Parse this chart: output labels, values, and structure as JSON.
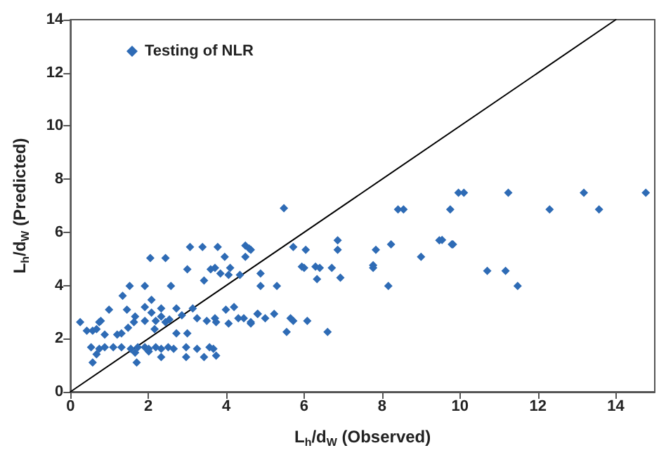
{
  "chart_data": {
    "type": "scatter",
    "xlabel": "L$_{h}$/d$_{W}$ (Observed)",
    "ylabel": "L$_{h}$/d$_{W}$ (Predicted)",
    "xlim": [
      0,
      15
    ],
    "xticks": [
      0,
      2,
      4,
      6,
      8,
      10,
      12,
      14
    ],
    "ylim": [
      0,
      14
    ],
    "yticks": [
      0,
      2,
      4,
      6,
      8,
      10,
      12,
      14
    ],
    "grid": false,
    "legend": "top left",
    "marker": "diamond",
    "series": [
      {
        "name": "Testing of NLR",
        "color": "#2e6bb5",
        "x": [
          6.86,
          6.86,
          6.04,
          5.72,
          5.94,
          6.0,
          6.29,
          6.4,
          6.71,
          6.33,
          6.93,
          4.88,
          4.88,
          5.3,
          4.63,
          7.84,
          7.77,
          7.77,
          8.23,
          8.16,
          9.0,
          9.47,
          9.79,
          4.63,
          4.8,
          5.0,
          5.23,
          5.65,
          5.72,
          6.08,
          5.55,
          6.6,
          9.96,
          10.1,
          11.24,
          13.18,
          14.77,
          9.75,
          12.3,
          13.57,
          9.54,
          9.82,
          10.7,
          11.17,
          11.48,
          8.41,
          8.55,
          5.48,
          3.07,
          3.39,
          3.78,
          4.49,
          4.59,
          2.05,
          2.44,
          3.96,
          4.49,
          3.0,
          3.6,
          3.71,
          4.1,
          3.85,
          3.43,
          4.06,
          4.35,
          1.52,
          1.91,
          2.58,
          1.34,
          2.08,
          1.91,
          2.33,
          2.72,
          3.14,
          1.45,
          0.99,
          2.08,
          4.2,
          3.99,
          4.81,
          0.25,
          0.78,
          0.74,
          1.66,
          1.63,
          1.91,
          2.19,
          2.33,
          2.54,
          2.44,
          2.86,
          3.25,
          3.5,
          3.71,
          3.74,
          4.06,
          4.31,
          4.45,
          4.63,
          0.42,
          0.57,
          0.67,
          0.88,
          1.2,
          1.31,
          1.48,
          2.16,
          2.72,
          3.0,
          0.53,
          0.74,
          0.88,
          1.1,
          1.31,
          1.55,
          1.73,
          1.91,
          2.01,
          2.19,
          2.33,
          2.51,
          2.65,
          2.97,
          3.25,
          3.57,
          3.67,
          0.67,
          1.66,
          2.01,
          2.33,
          2.97,
          3.43,
          3.74,
          0.57,
          1.7
        ],
        "values": [
          5.7,
          5.34,
          5.34,
          5.45,
          4.71,
          4.66,
          4.71,
          4.66,
          4.66,
          4.24,
          4.29,
          4.45,
          3.98,
          3.98,
          5.34,
          5.34,
          4.76,
          4.66,
          5.55,
          3.98,
          5.08,
          5.7,
          5.55,
          2.62,
          2.93,
          2.77,
          2.93,
          2.77,
          2.67,
          2.67,
          2.25,
          2.25,
          7.49,
          7.49,
          7.49,
          7.49,
          7.49,
          6.86,
          6.86,
          6.86,
          5.71,
          5.55,
          4.55,
          4.55,
          3.98,
          6.86,
          6.86,
          6.91,
          5.45,
          5.45,
          5.45,
          5.5,
          5.39,
          5.03,
          5.03,
          5.08,
          5.08,
          4.61,
          4.61,
          4.66,
          4.66,
          4.45,
          4.19,
          4.4,
          4.4,
          3.98,
          3.98,
          3.98,
          3.61,
          3.46,
          3.19,
          3.14,
          3.14,
          3.14,
          3.09,
          3.09,
          2.98,
          3.19,
          3.09,
          2.93,
          2.62,
          2.67,
          2.62,
          2.83,
          2.62,
          2.67,
          2.67,
          2.83,
          2.72,
          2.62,
          2.88,
          2.77,
          2.67,
          2.77,
          2.62,
          2.57,
          2.77,
          2.77,
          2.57,
          2.3,
          2.3,
          2.36,
          2.15,
          2.15,
          2.2,
          2.41,
          2.36,
          2.2,
          2.2,
          1.68,
          1.62,
          1.68,
          1.68,
          1.68,
          1.62,
          1.68,
          1.68,
          1.62,
          1.68,
          1.62,
          1.68,
          1.62,
          1.68,
          1.62,
          1.68,
          1.62,
          1.41,
          1.47,
          1.52,
          1.31,
          1.31,
          1.31,
          1.36,
          1.1,
          1.1
        ]
      },
      {
        "type": "line",
        "color": "#000000",
        "marker": "none",
        "line_style": "solid",
        "x": [
          0,
          14
        ],
        "values": [
          0,
          14
        ]
      }
    ]
  }
}
